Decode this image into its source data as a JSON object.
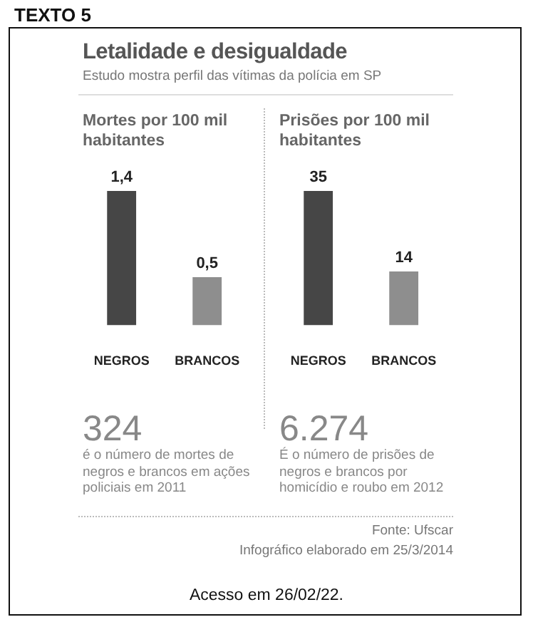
{
  "chart_data": [
    {
      "type": "bar",
      "title": "Letalidade e desigualdade",
      "subtitle": "Estudo mostra perfil das vítimas da polícia em SP",
      "categories": [
        "NEGROS",
        "BRANCOS"
      ],
      "values": [
        1.4,
        0.5
      ],
      "colors": [
        "#464646",
        "#8e8e8e"
      ],
      "value_labels": [
        "1,4",
        "0,5"
      ],
      "annotations": [
        "TEXTO 5",
        "Mortes por 100 mil habitantes",
        "324",
        "é o número de mortes de negros e brancos em ações policiais em 2011"
      ]
    },
    {
      "type": "bar",
      "categories": [
        "NEGROS",
        "BRANCOS"
      ],
      "values": [
        35,
        14
      ],
      "colors": [
        "#464646",
        "#8e8e8e"
      ],
      "value_labels": [
        "35",
        "14"
      ],
      "annotations": [
        "Prisões por 100 mil habitantes",
        "6.274",
        "É o número de prisões de negros e brancos por homicídio e roubo em 2012",
        "Fonte: Ufscar",
        "Infográfico elaborado em 25/3/2014",
        "Acesso em 26/02/22."
      ]
    }
  ]
}
